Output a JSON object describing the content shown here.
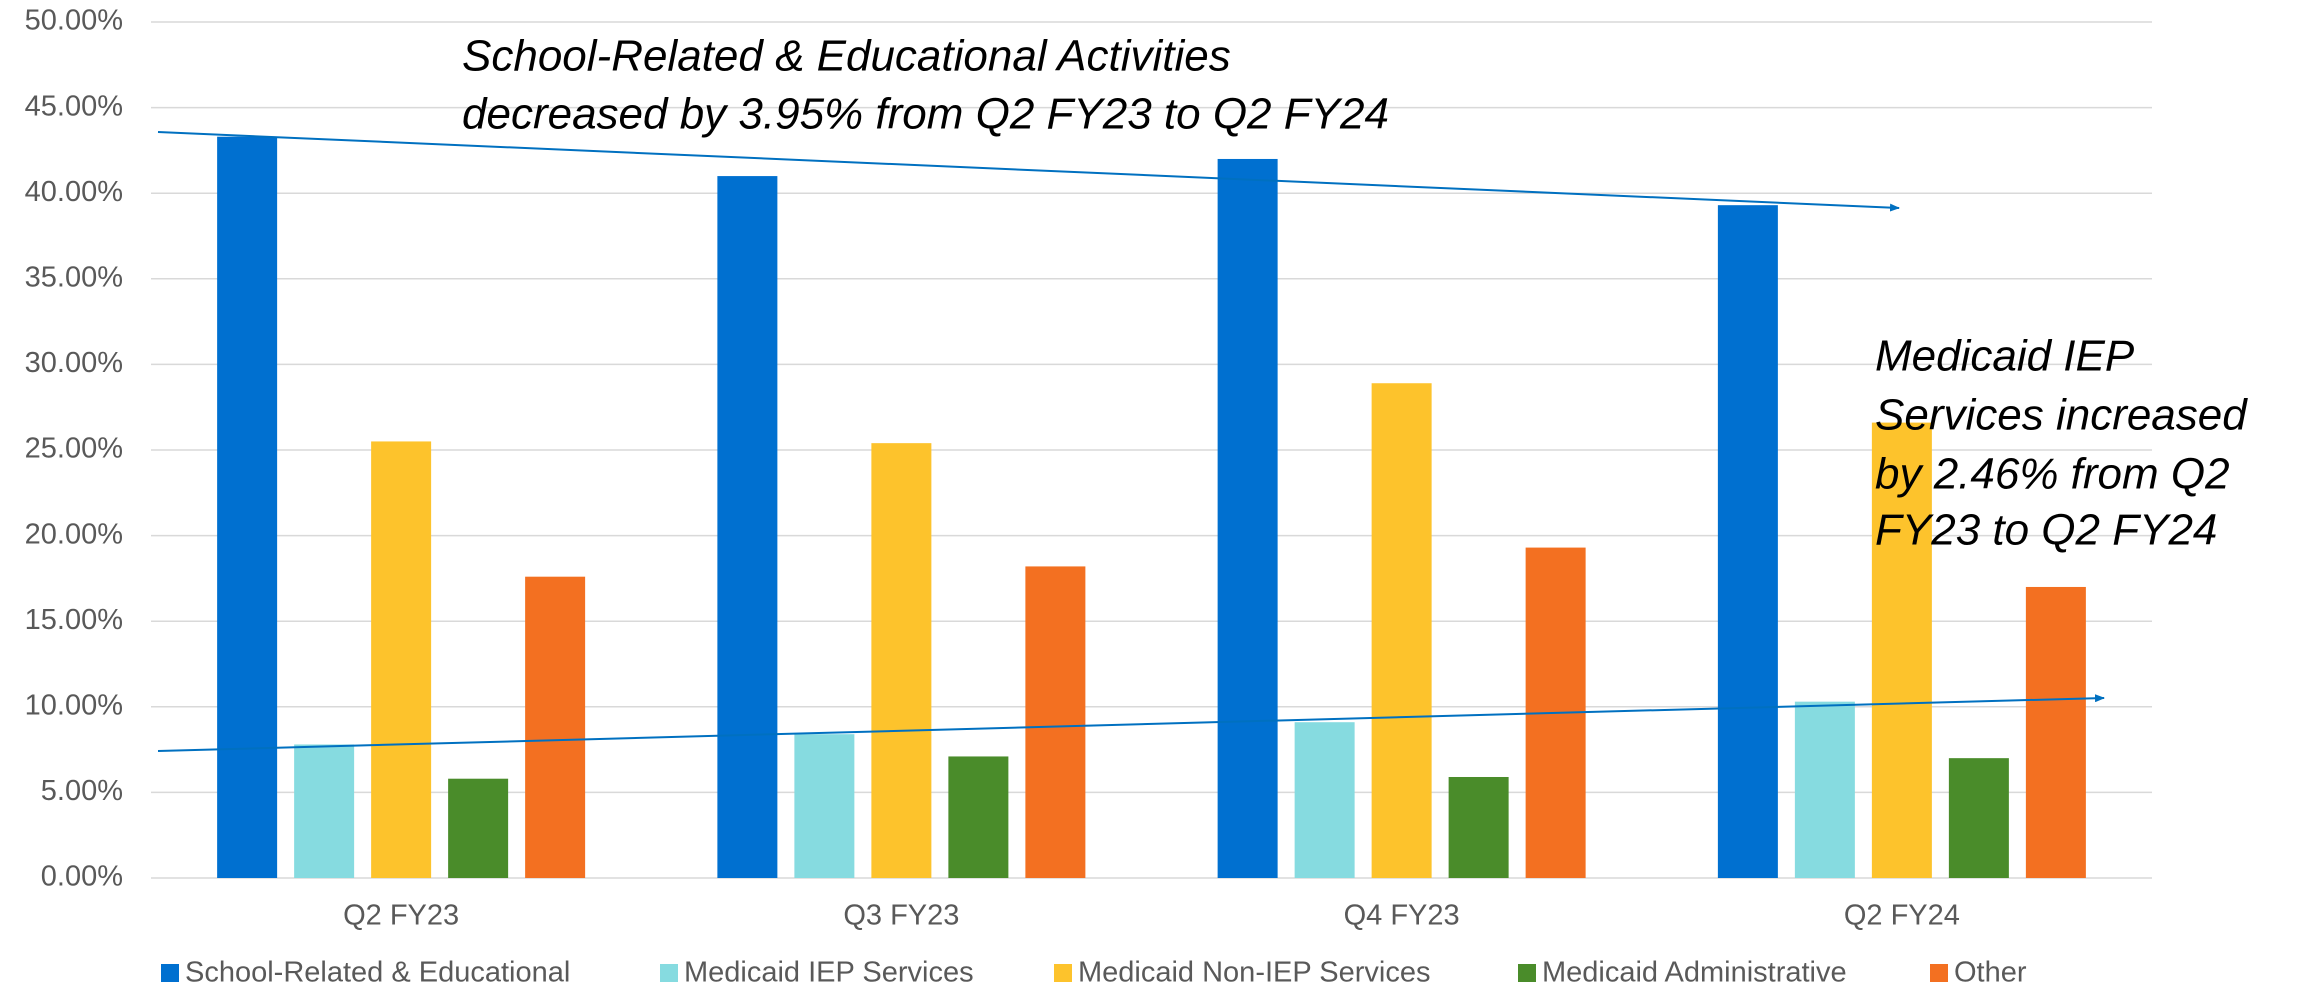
{
  "chart_data": {
    "type": "bar",
    "categories": [
      "Q2 FY23",
      "Q3 FY23",
      "Q4 FY23",
      "Q2 FY24"
    ],
    "series": [
      {
        "name": "School-Related & Educational",
        "color": "#0070d0",
        "values": [
          43.3,
          41.0,
          42.0,
          39.3
        ]
      },
      {
        "name": "Medicaid IEP Services",
        "color": "#86dbe0",
        "values": [
          7.8,
          8.4,
          9.1,
          10.3
        ]
      },
      {
        "name": "Medicaid Non-IEP Services",
        "color": "#fdc32c",
        "values": [
          25.5,
          25.4,
          28.9,
          26.6
        ]
      },
      {
        "name": "Medicaid Administrative",
        "color": "#4a8c2a",
        "values": [
          5.8,
          7.1,
          5.9,
          7.0
        ]
      },
      {
        "name": "Other",
        "color": "#f37021",
        "values": [
          17.6,
          18.2,
          19.3,
          17.0
        ]
      }
    ],
    "ylim": [
      0,
      50
    ],
    "yticks": [
      {
        "value": 0,
        "label": "0.00%"
      },
      {
        "value": 5,
        "label": "5.00%"
      },
      {
        "value": 10,
        "label": "10.00%"
      },
      {
        "value": 15,
        "label": "15.00%"
      },
      {
        "value": 20,
        "label": "20.00%"
      },
      {
        "value": 25,
        "label": "25.00%"
      },
      {
        "value": 30,
        "label": "30.00%"
      },
      {
        "value": 35,
        "label": "35.00%"
      },
      {
        "value": 40,
        "label": "40.00%"
      },
      {
        "value": 45,
        "label": "45.00%"
      },
      {
        "value": 50,
        "label": "50.00%"
      }
    ],
    "grid": true,
    "legend": "bottom",
    "annotations": [
      [
        "School-Related & Educational Activities",
        "decreased by 3.95% from Q2 FY23 to Q2 FY24"
      ],
      [
        "Medicaid IEP",
        "Services increased",
        "by 2.46% from Q2",
        "FY23 to Q2 FY24"
      ]
    ]
  }
}
